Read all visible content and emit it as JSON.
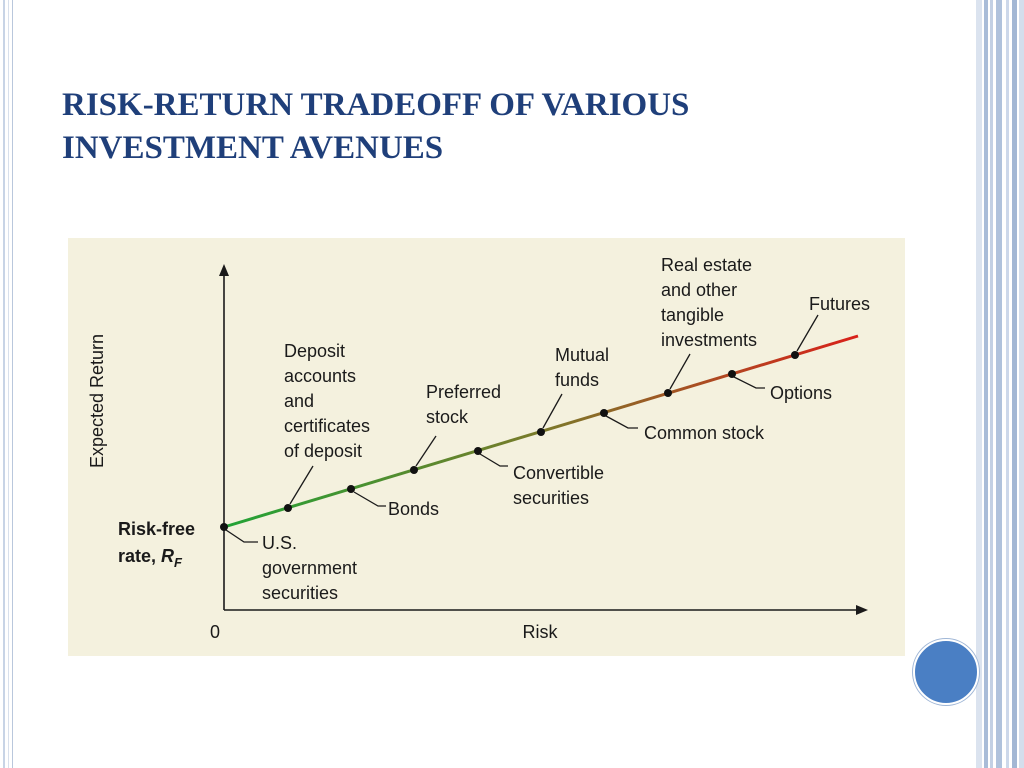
{
  "slide": {
    "title_lines": [
      "RISK-RETURN TRADEOFF OF VARIOUS",
      "INVESTMENT AVENUES"
    ],
    "colors": {
      "title": "#1f3f7a",
      "frame": "#b9c7dc",
      "accent_circle": "#4a7fc4",
      "figure_bg": "#f4f1de",
      "line_start": "#22a336",
      "line_end": "#d9211a"
    }
  },
  "diagram": {
    "y_axis_label": "Expected Return",
    "x_axis_label": "Risk",
    "origin_label": "0",
    "risk_free_label": [
      "Risk-free",
      "rate, "
    ],
    "risk_free_symbol": "R",
    "risk_free_subscript": "F",
    "labels": {
      "us_gov": [
        "U.S.",
        "government",
        "securities"
      ],
      "deposit": [
        "Deposit",
        "accounts",
        "and",
        "certificates",
        "of deposit"
      ],
      "bonds": [
        "Bonds"
      ],
      "preferred": [
        "Preferred",
        "stock"
      ],
      "convertible": [
        "Convertible",
        "securities"
      ],
      "mutual": [
        "Mutual",
        "funds"
      ],
      "common": [
        "Common stock"
      ],
      "real_estate": [
        "Real estate",
        "and other",
        "tangible",
        "investments"
      ],
      "options": [
        "Options"
      ],
      "futures": [
        "Futures"
      ]
    }
  }
}
